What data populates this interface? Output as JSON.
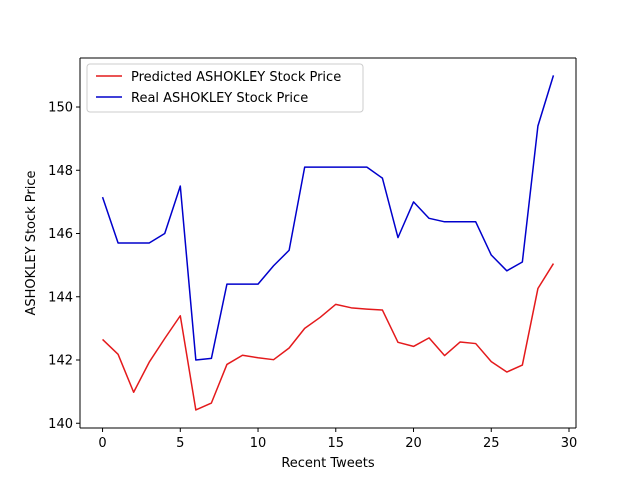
{
  "chart_data": {
    "type": "line",
    "title": "",
    "xlabel": "Recent Tweets",
    "ylabel": "ASHOKLEY Stock Price",
    "xlim": [
      -1.45,
      30.45
    ],
    "ylim": [
      139.85,
      151.55
    ],
    "xticks": [
      0,
      5,
      10,
      15,
      20,
      25,
      30
    ],
    "yticks": [
      140,
      142,
      144,
      146,
      148,
      150
    ],
    "grid": false,
    "legend_position": "top-left",
    "x": [
      0,
      1,
      2,
      3,
      4,
      5,
      6,
      7,
      8,
      9,
      10,
      11,
      12,
      13,
      14,
      15,
      16,
      17,
      18,
      19,
      20,
      21,
      22,
      23,
      24,
      25,
      26,
      27,
      28,
      29
    ],
    "series": [
      {
        "name": "Predicted ASHOKLEY Stock Price",
        "color": "#e41a1c",
        "values": [
          142.65,
          142.18,
          140.98,
          141.93,
          142.68,
          143.4,
          140.42,
          140.64,
          141.86,
          142.15,
          142.07,
          142.01,
          142.38,
          143.0,
          143.35,
          143.76,
          143.65,
          143.61,
          143.58,
          142.56,
          142.43,
          142.7,
          142.14,
          142.57,
          142.52,
          141.95,
          141.62,
          141.84,
          144.26,
          145.05
        ]
      },
      {
        "name": "Real ASHOKLEY Stock Price",
        "color": "#0000cc",
        "values": [
          147.15,
          145.7,
          145.7,
          145.7,
          146.0,
          147.5,
          142.0,
          142.05,
          144.4,
          144.4,
          144.4,
          144.98,
          145.47,
          148.1,
          148.1,
          148.1,
          148.1,
          148.1,
          147.75,
          145.87,
          147.0,
          146.48,
          146.37,
          146.37,
          146.37,
          145.32,
          144.82,
          145.1,
          149.4,
          151.0
        ]
      }
    ]
  }
}
